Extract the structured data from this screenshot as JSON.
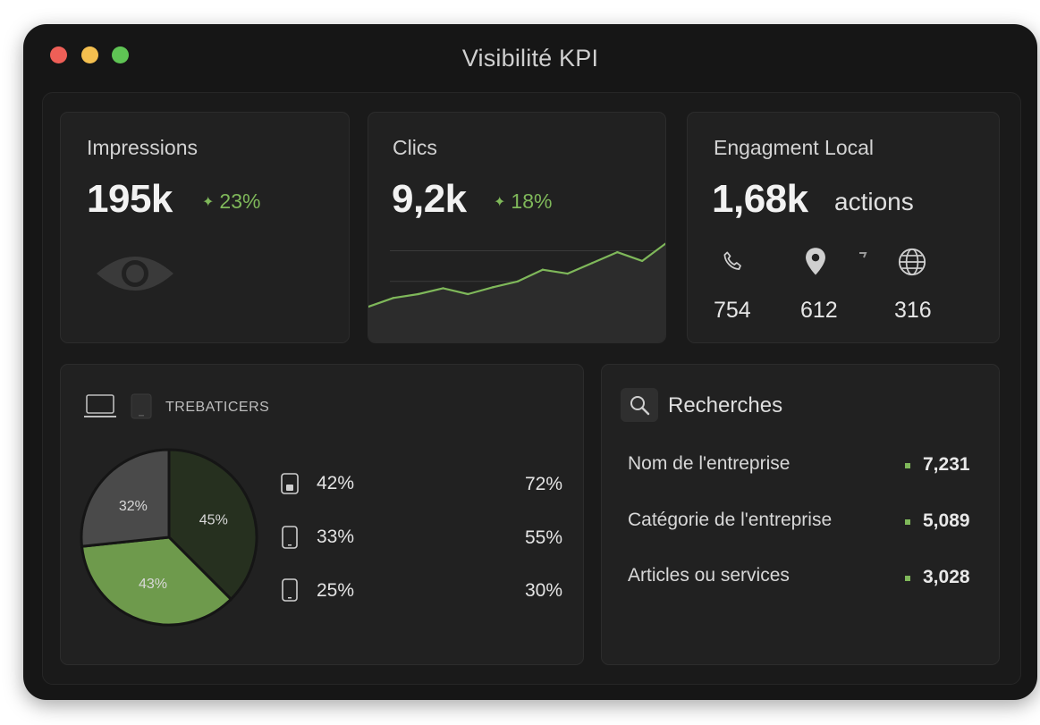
{
  "window": {
    "title": "Visibilité KPI"
  },
  "impressions": {
    "title": "Impressions",
    "value": "195k",
    "delta": "23%"
  },
  "clics": {
    "title": "Clics",
    "value": "9,2k",
    "delta": "18%"
  },
  "engagement": {
    "title": "Engagment Local",
    "value": "1,68k",
    "unit": "actions",
    "items": [
      {
        "icon": "phone-icon",
        "value": "754"
      },
      {
        "icon": "location-pin-icon",
        "value": "612"
      },
      {
        "icon": "globe-icon",
        "value": "316"
      }
    ]
  },
  "devices": {
    "header": "TREBATICERS",
    "rows": [
      {
        "icon": "tablet-icon",
        "pct": "42%",
        "pct2": "72%"
      },
      {
        "icon": "phone-device-icon",
        "pct": "33%",
        "pct2": "55%"
      },
      {
        "icon": "phone-device-icon",
        "pct": "25%",
        "pct2": "30%"
      }
    ]
  },
  "searches": {
    "title": "Recherches",
    "items": [
      {
        "label": "Nom de l'entreprise",
        "value": "7,231"
      },
      {
        "label": "Catégorie de l'entreprise",
        "value": "5,089"
      },
      {
        "label": "Articles ou services",
        "value": "3,028"
      }
    ]
  },
  "colors": {
    "accent": "#7fb85a",
    "background": "#161616",
    "card": "#212121"
  },
  "chart_data": [
    {
      "type": "line",
      "title": "Clics",
      "x": [
        1,
        2,
        3,
        4,
        5,
        6,
        7,
        8,
        9,
        10,
        11,
        12,
        13
      ],
      "values": [
        1.0,
        1.9,
        2.3,
        2.9,
        2.3,
        3.0,
        3.6,
        4.8,
        4.4,
        5.5,
        6.6,
        5.7,
        7.6
      ],
      "ylim": [
        0,
        9
      ],
      "grid": true
    },
    {
      "type": "pie",
      "title": "",
      "labels": [
        "45%",
        "43%",
        "32%"
      ],
      "values": [
        45,
        43,
        32
      ]
    }
  ]
}
